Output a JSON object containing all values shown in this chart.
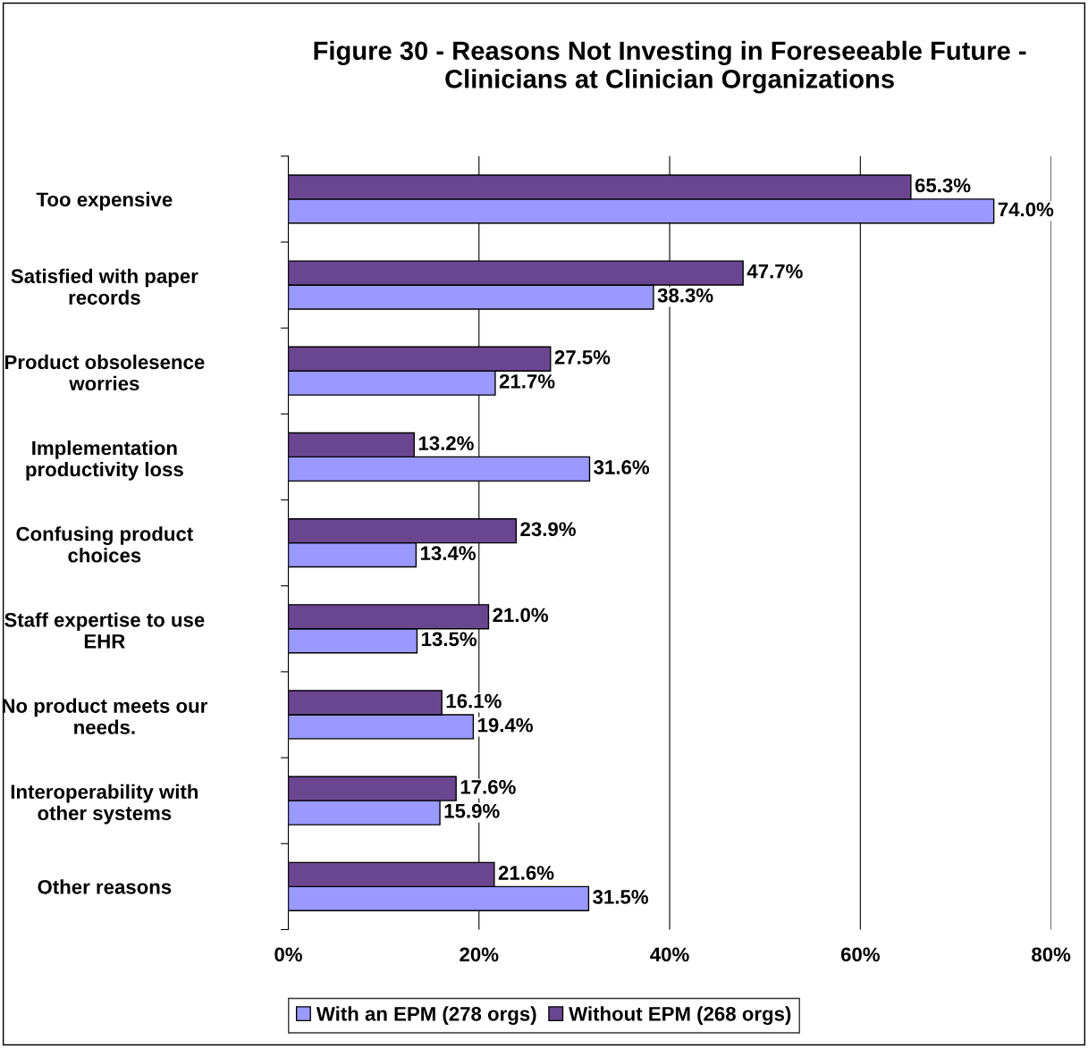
{
  "chart_data": {
    "type": "bar",
    "orientation": "horizontal",
    "title": "Figure 30 - Reasons Not Investing in Foreseeable Future -\nClinicians at Clinician Organizations",
    "categories": [
      "Too expensive",
      "Satisfied with paper\nrecords",
      "Product obsolesence\nworries",
      "Implementation\nproductivity loss",
      "Confusing product\nchoices",
      "Staff expertise to use\nEHR",
      "No product meets our\nneeds.",
      "Interoperability with\nother systems",
      "Other reasons"
    ],
    "series": [
      {
        "name": "With an EPM (278 orgs)",
        "color": "#9999ff",
        "values": [
          74.0,
          38.3,
          21.7,
          31.6,
          13.4,
          13.5,
          19.4,
          15.9,
          31.5
        ],
        "value_labels": [
          "74.0%",
          "38.3%",
          "21.7%",
          "31.6%",
          "13.4%",
          "13.5%",
          "19.4%",
          "15.9%",
          "31.5%"
        ]
      },
      {
        "name": "Without EPM (268 orgs)",
        "color": "#6b4690",
        "values": [
          65.3,
          47.7,
          27.5,
          13.2,
          23.9,
          21.0,
          16.1,
          17.6,
          21.6
        ],
        "value_labels": [
          "65.3%",
          "47.7%",
          "27.5%",
          "13.2%",
          "23.9%",
          "21.0%",
          "16.1%",
          "17.6%",
          "21.6%"
        ]
      }
    ],
    "xlim": [
      0,
      80
    ],
    "xticks": [
      {
        "value": 0,
        "label": "0%"
      },
      {
        "value": 20,
        "label": "20%"
      },
      {
        "value": 40,
        "label": "40%"
      },
      {
        "value": 60,
        "label": "60%"
      },
      {
        "value": 80,
        "label": "80%"
      }
    ],
    "grid": "x",
    "legend": "bottom"
  }
}
